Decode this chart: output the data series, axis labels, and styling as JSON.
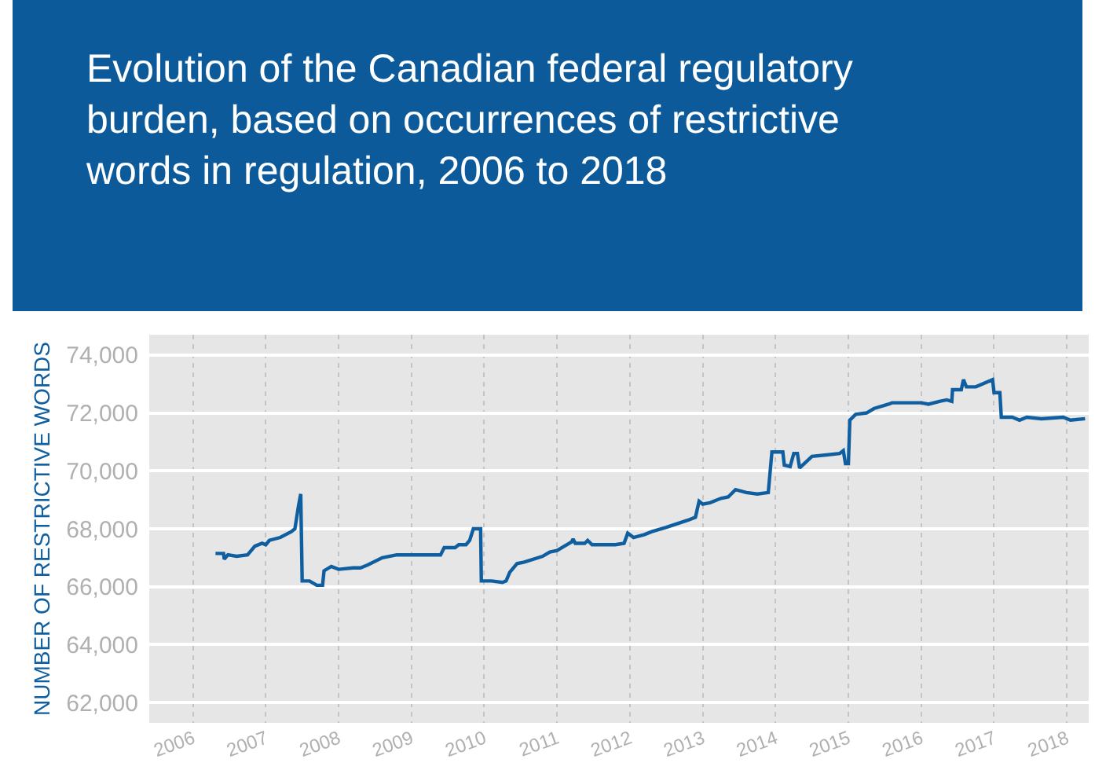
{
  "chart_data": {
    "type": "line",
    "title": "Evolution of the Canadian federal regulatory burden, based on occurrences of restrictive words in regulation, 2006 to 2018",
    "ylabel": "NUMBER OF RESTRICTIVE WORDS",
    "xlim": [
      2005.4,
      2018.3
    ],
    "xticks": [
      2006,
      2007,
      2008,
      2009,
      2010,
      2011,
      2012,
      2013,
      2014,
      2015,
      2016,
      2017,
      2018
    ],
    "ylim": [
      61300,
      74700
    ],
    "yticks": [
      {
        "value": 62000,
        "label": "62,000"
      },
      {
        "value": 64000,
        "label": "64,000"
      },
      {
        "value": 66000,
        "label": "66,000"
      },
      {
        "value": 68000,
        "label": "68,000"
      },
      {
        "value": 70000,
        "label": "70,000"
      },
      {
        "value": 72000,
        "label": "72,000"
      },
      {
        "value": 74000,
        "label": "74,000"
      }
    ],
    "grid": true,
    "marker": "none",
    "line_style": "solid",
    "series": [
      {
        "color": "#0f5fa0",
        "x": [
          2006.31,
          2006.42,
          2006.43,
          2006.48,
          2006.6,
          2006.75,
          2006.85,
          2006.95,
          2007.0,
          2007.05,
          2007.2,
          2007.35,
          2007.4,
          2007.45,
          2007.48,
          2007.5,
          2007.6,
          2007.7,
          2007.78,
          2007.8,
          2007.9,
          2008.0,
          2008.2,
          2008.3,
          2008.4,
          2008.6,
          2008.8,
          2009.0,
          2009.4,
          2009.45,
          2009.6,
          2009.65,
          2009.75,
          2009.8,
          2009.85,
          2009.95,
          2009.96,
          2010.1,
          2010.25,
          2010.3,
          2010.35,
          2010.45,
          2010.55,
          2010.8,
          2010.9,
          2011.0,
          2011.1,
          2011.2,
          2011.22,
          2011.25,
          2011.38,
          2011.42,
          2011.48,
          2011.8,
          2011.92,
          2011.97,
          2012.05,
          2012.2,
          2012.3,
          2012.5,
          2012.8,
          2012.9,
          2012.95,
          2013.0,
          2013.1,
          2013.25,
          2013.35,
          2013.45,
          2013.6,
          2013.75,
          2013.9,
          2013.95,
          2014.1,
          2014.12,
          2014.2,
          2014.25,
          2014.3,
          2014.33,
          2014.5,
          2014.7,
          2014.88,
          2014.93,
          2014.96,
          2015.0,
          2015.02,
          2015.1,
          2015.25,
          2015.35,
          2015.55,
          2015.6,
          2016.0,
          2016.1,
          2016.25,
          2016.35,
          2016.42,
          2016.43,
          2016.55,
          2016.58,
          2016.62,
          2016.75,
          2016.98,
          2017.0,
          2017.08,
          2017.1,
          2017.25,
          2017.35,
          2017.45,
          2017.65,
          2017.95,
          2018.05,
          2018.25
        ],
        "values": [
          67150,
          67150,
          66950,
          67100,
          67050,
          67100,
          67400,
          67500,
          67450,
          67600,
          67700,
          67900,
          68000,
          68800,
          69200,
          66200,
          66200,
          66050,
          66050,
          66550,
          66700,
          66600,
          66650,
          66650,
          66750,
          67000,
          67100,
          67100,
          67100,
          67350,
          67350,
          67450,
          67450,
          67600,
          68000,
          68000,
          66200,
          66200,
          66150,
          66200,
          66500,
          66800,
          66850,
          67050,
          67200,
          67250,
          67400,
          67550,
          67650,
          67500,
          67500,
          67600,
          67450,
          67450,
          67500,
          67850,
          67700,
          67800,
          67900,
          68050,
          68300,
          68400,
          68950,
          68850,
          68900,
          69050,
          69100,
          69350,
          69250,
          69200,
          69250,
          70650,
          70650,
          70200,
          70150,
          70600,
          70600,
          70100,
          70500,
          70550,
          70600,
          70700,
          70250,
          70250,
          71750,
          71950,
          72000,
          72150,
          72300,
          72350,
          72350,
          72300,
          72400,
          72450,
          72400,
          72800,
          72800,
          73150,
          72900,
          72900,
          73150,
          72700,
          72700,
          71850,
          71850,
          71750,
          71850,
          71800,
          71850,
          71750,
          71800
        ]
      }
    ]
  }
}
